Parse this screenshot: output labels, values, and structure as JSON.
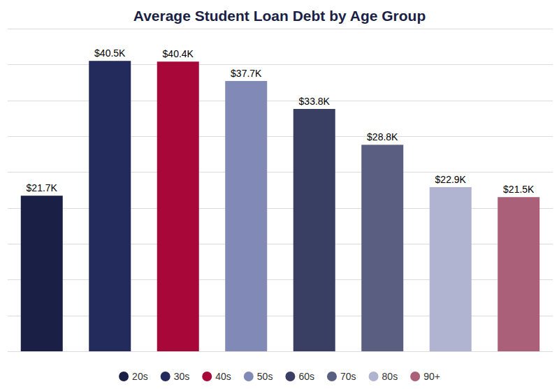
{
  "chart_data": {
    "type": "bar",
    "title": "Average Student Loan Debt by Age Group",
    "categories": [
      "20s",
      "30s",
      "40s",
      "50s",
      "60s",
      "70s",
      "80s",
      "90+"
    ],
    "values": [
      21700,
      40500,
      40400,
      37700,
      33800,
      28800,
      22900,
      21500
    ],
    "value_labels": [
      "$21.7K",
      "$40.5K",
      "$40.4K",
      "$37.7K",
      "$33.8K",
      "$28.8K",
      "$22.9K",
      "$21.5K"
    ],
    "colors": [
      "#1a1f45",
      "#222b5c",
      "#a8073a",
      "#818ab6",
      "#393f63",
      "#5a5f82",
      "#b0b4d0",
      "#aa6078"
    ],
    "ylim": [
      0,
      45000
    ],
    "yticks": [
      0,
      5000,
      10000,
      15000,
      20000,
      25000,
      30000,
      35000,
      40000,
      45000
    ],
    "grid": true,
    "data_labels": true,
    "tick_labels": false,
    "legend": "bottom"
  }
}
